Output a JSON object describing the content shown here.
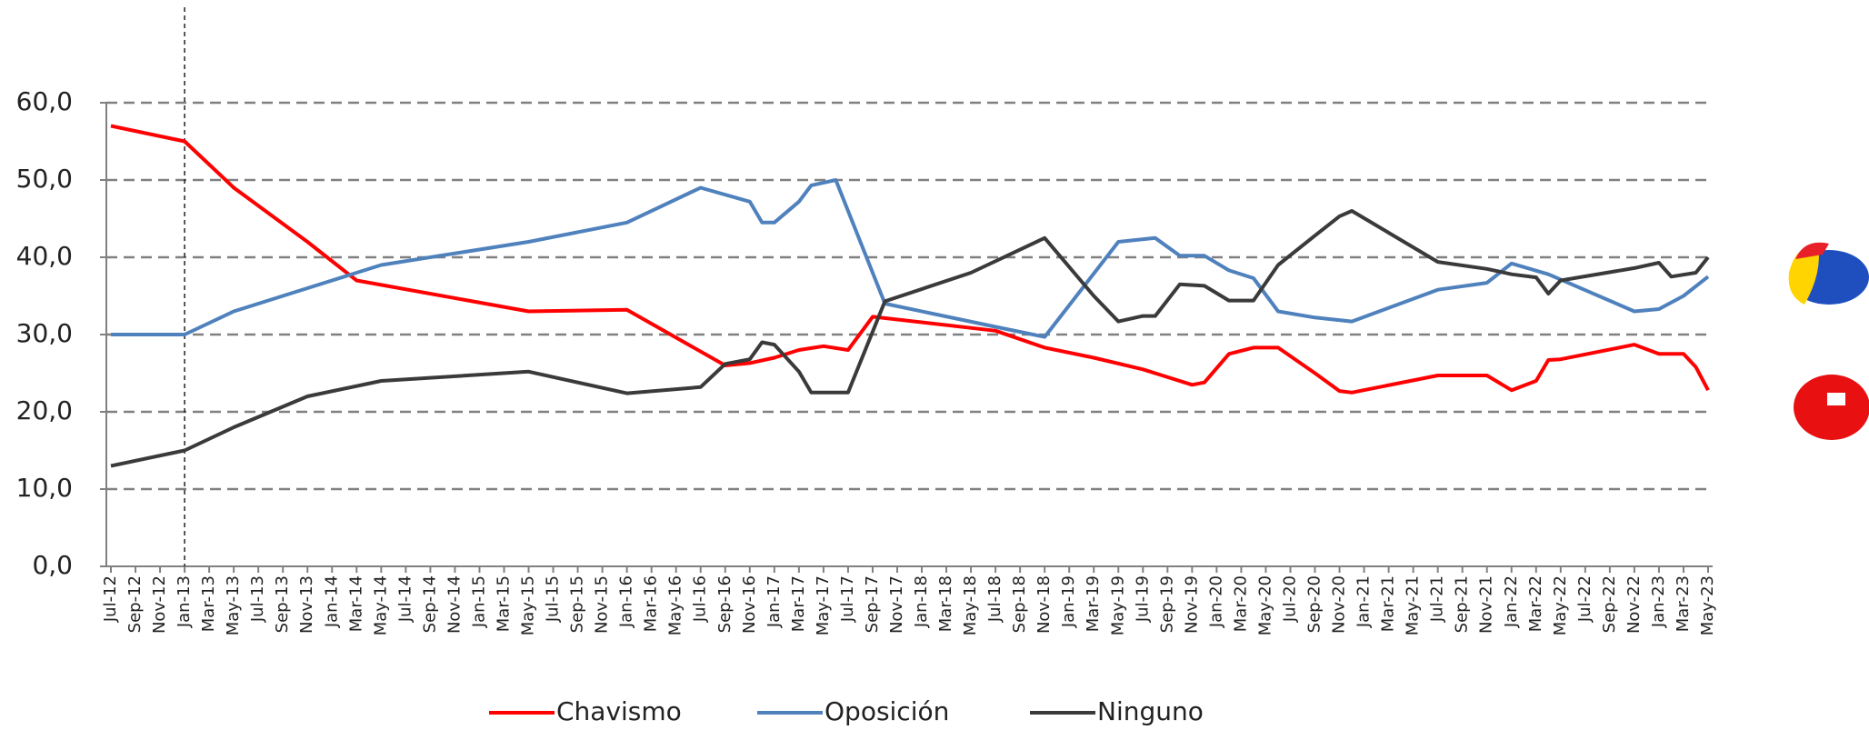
{
  "chart_data": {
    "type": "line",
    "ylim": [
      0,
      60
    ],
    "yticks": [
      {
        "value": 0,
        "label": "0,0"
      },
      {
        "value": 10,
        "label": "10,0"
      },
      {
        "value": 20,
        "label": "20,0"
      },
      {
        "value": 30,
        "label": "30,0"
      },
      {
        "value": 40,
        "label": "40,0"
      },
      {
        "value": 50,
        "label": "50,0"
      },
      {
        "value": 60,
        "label": "60,0"
      }
    ],
    "grid": true,
    "xticks": [
      "Jul-12",
      "Sep-12",
      "Nov-12",
      "Jan-13",
      "Mar-13",
      "May-13",
      "Jul-13",
      "Sep-13",
      "Nov-13",
      "Jan-14",
      "Mar-14",
      "May-14",
      "Jul-14",
      "Sep-14",
      "Nov-14",
      "Jan-15",
      "Mar-15",
      "May-15",
      "Jul-15",
      "Sep-15",
      "Nov-15",
      "Jan-16",
      "Mar-16",
      "May-16",
      "Jul-16",
      "Sep-16",
      "Nov-16",
      "Jan-17",
      "Mar-17",
      "May-17",
      "Jul-17",
      "Sep-17",
      "Nov-17",
      "Jan-18",
      "Mar-18",
      "May-18",
      "Jul-18",
      "Sep-18",
      "Nov-18",
      "Jan-19",
      "Mar-19",
      "May-19",
      "Jul-19",
      "Sep-19",
      "Nov-19",
      "Jan-20",
      "Mar-20",
      "May-20",
      "Jul-20",
      "Sep-20",
      "Nov-20",
      "Jan-21",
      "Mar-21",
      "May-21",
      "Jul-21",
      "Sep-21",
      "Nov-21",
      "Jan-22",
      "Mar-22",
      "May-22",
      "Jul-22",
      "Sep-22",
      "Nov-22",
      "Jan-23",
      "Mar-23",
      "May-23"
    ],
    "reference_line_x": "Jan-13",
    "legend": "bottom",
    "series": [
      {
        "name": "Chavismo",
        "color": "#ff0000",
        "x": [
          "Jul-12",
          "Jan-13",
          "May-13",
          "Nov-13",
          "Mar-14",
          "May-15",
          "Jan-16",
          "Sep-16",
          "Nov-16",
          "Jan-17",
          "Mar-17",
          "May-17",
          "Jul-17",
          "Sep-17",
          "Jul-18",
          "Nov-18",
          "Mar-19",
          "Jul-19",
          "Nov-19",
          "Dec-19",
          "Feb-20",
          "Apr-20",
          "Jun-20",
          "Sep-20",
          "Nov-20",
          "Dec-20",
          "Jul-21",
          "Nov-21",
          "Jan-22",
          "Mar-22",
          "Apr-22",
          "May-22",
          "Nov-22",
          "Jan-23",
          "Mar-23",
          "Apr-23",
          "May-23"
        ],
        "values": [
          57,
          55,
          49,
          42,
          37,
          33,
          33.2,
          26,
          26.3,
          27,
          28,
          28.5,
          28,
          32.3,
          30.5,
          28.3,
          27,
          25.5,
          23.5,
          23.8,
          27.5,
          28.3,
          28.3,
          25,
          22.7,
          22.5,
          24.7,
          24.7,
          22.8,
          24,
          26.7,
          26.8,
          28.7,
          27.5,
          27.5,
          25.8,
          22.8
        ]
      },
      {
        "name": "Oposición",
        "color": "#4f81bd",
        "x": [
          "Jul-12",
          "Jan-13",
          "May-13",
          "Nov-13",
          "May-14",
          "May-15",
          "Jan-16",
          "Jul-16",
          "Nov-16",
          "Dec-16",
          "Jan-17",
          "Mar-17",
          "Apr-17",
          "Jun-17",
          "Oct-17",
          "Jul-18",
          "Nov-18",
          "May-19",
          "Aug-19",
          "Oct-19",
          "Dec-19",
          "Feb-20",
          "Apr-20",
          "Jun-20",
          "Sep-20",
          "Dec-20",
          "Jul-21",
          "Nov-21",
          "Jan-22",
          "Apr-22",
          "Nov-22",
          "Jan-23",
          "Mar-23",
          "May-23"
        ],
        "values": [
          30,
          30,
          33,
          36,
          39,
          42,
          44.5,
          49,
          47.2,
          44.5,
          44.5,
          47.2,
          49.3,
          50,
          34,
          31,
          29.7,
          42,
          42.5,
          40.2,
          40.2,
          38.3,
          37.3,
          33,
          32.2,
          31.7,
          35.8,
          36.7,
          39.2,
          37.8,
          33,
          33.3,
          35,
          37.5
        ]
      },
      {
        "name": "Ninguno",
        "color": "#3a3a3a",
        "x": [
          "Jul-12",
          "Jan-13",
          "May-13",
          "Nov-13",
          "May-14",
          "May-15",
          "Jan-16",
          "Jul-16",
          "Sep-16",
          "Nov-16",
          "Dec-16",
          "Jan-17",
          "Mar-17",
          "Apr-17",
          "Jul-17",
          "Oct-17",
          "May-18",
          "Nov-18",
          "Mar-19",
          "May-19",
          "Jul-19",
          "Aug-19",
          "Oct-19",
          "Dec-19",
          "Feb-20",
          "Apr-20",
          "Jun-20",
          "Sep-20",
          "Nov-20",
          "Dec-20",
          "Jul-21",
          "Nov-21",
          "Jan-22",
          "Mar-22",
          "Apr-22",
          "May-22",
          "Nov-22",
          "Jan-23",
          "Feb-23",
          "Apr-23",
          "May-23"
        ],
        "values": [
          13,
          15,
          18,
          22,
          24,
          25.2,
          22.4,
          23.2,
          26.2,
          26.8,
          29,
          28.7,
          25.2,
          22.5,
          22.5,
          34.3,
          38,
          42.5,
          35,
          31.7,
          32.4,
          32.4,
          36.5,
          36.3,
          34.4,
          34.4,
          39,
          42.8,
          45.3,
          46,
          39.4,
          38.5,
          37.8,
          37.4,
          35.3,
          37,
          38.6,
          39.3,
          37.5,
          38,
          40
        ]
      }
    ]
  }
}
